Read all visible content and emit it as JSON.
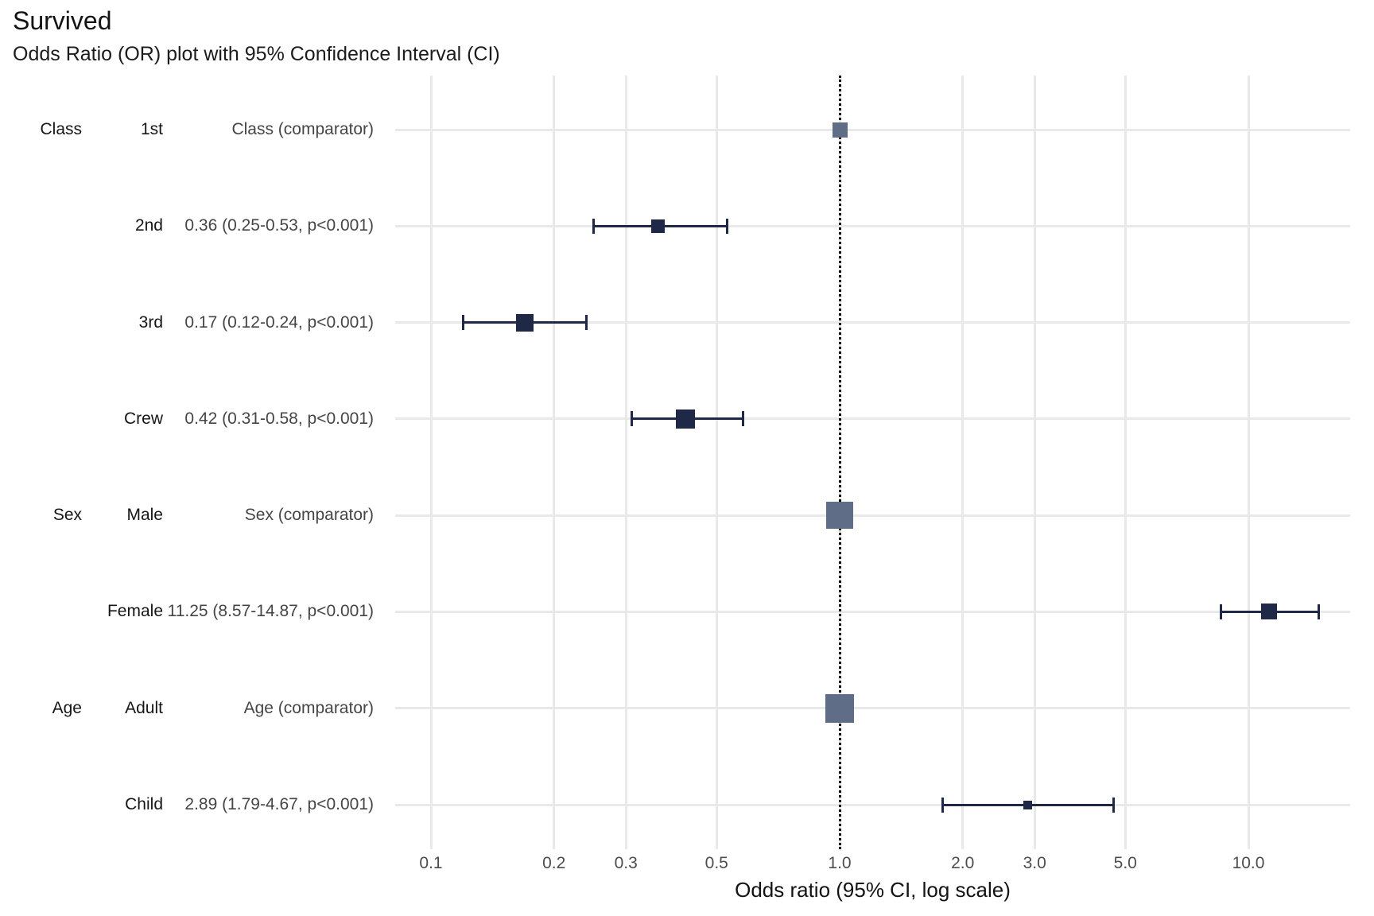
{
  "title": "Survived",
  "subtitle": "Odds Ratio (OR) plot with 95% Confidence Interval (CI)",
  "chart_data": {
    "type": "forest",
    "title": "Survived",
    "subtitle": "Odds Ratio (OR) plot with 95% Confidence Interval (CI)",
    "x_axis": {
      "label": "Odds ratio (95% CI, log scale)",
      "scale": "log10",
      "range": [
        0.082,
        17.7
      ],
      "ticks": [
        0.1,
        0.2,
        0.3,
        0.5,
        1.0,
        2.0,
        3.0,
        5.0,
        10.0
      ],
      "tick_labels": [
        "0.1",
        "0.2",
        "0.3",
        "0.5",
        "1.0",
        "2.0",
        "3.0",
        "5.0",
        "10.0"
      ],
      "reference_line": 1.0,
      "grid": true
    },
    "rows": [
      {
        "group": "Class",
        "level": "1st",
        "estimate_label": "Class (comparator)",
        "or": 1.0,
        "ci_low": null,
        "ci_high": null,
        "comparator": true,
        "marker_size": 19
      },
      {
        "group": "",
        "level": "2nd",
        "estimate_label": "0.36 (0.25-0.53, p<0.001)",
        "or": 0.36,
        "ci_low": 0.25,
        "ci_high": 0.53,
        "comparator": false,
        "marker_size": 17
      },
      {
        "group": "",
        "level": "3rd",
        "estimate_label": "0.17 (0.12-0.24, p<0.001)",
        "or": 0.17,
        "ci_low": 0.12,
        "ci_high": 0.24,
        "comparator": false,
        "marker_size": 22
      },
      {
        "group": "",
        "level": "Crew",
        "estimate_label": "0.42 (0.31-0.58, p<0.001)",
        "or": 0.42,
        "ci_low": 0.31,
        "ci_high": 0.58,
        "comparator": false,
        "marker_size": 24
      },
      {
        "group": "Sex",
        "level": "Male",
        "estimate_label": "Sex (comparator)",
        "or": 1.0,
        "ci_low": null,
        "ci_high": null,
        "comparator": true,
        "marker_size": 34
      },
      {
        "group": "",
        "level": "Female",
        "estimate_label": "11.25 (8.57-14.87, p<0.001)",
        "or": 11.25,
        "ci_low": 8.57,
        "ci_high": 14.87,
        "comparator": false,
        "marker_size": 20
      },
      {
        "group": "Age",
        "level": "Adult",
        "estimate_label": "Age (comparator)",
        "or": 1.0,
        "ci_low": null,
        "ci_high": null,
        "comparator": true,
        "marker_size": 36
      },
      {
        "group": "",
        "level": "Child",
        "estimate_label": "2.89 (1.79-4.67, p<0.001)",
        "or": 2.89,
        "ci_low": 1.79,
        "ci_high": 4.67,
        "comparator": false,
        "marker_size": 11
      }
    ],
    "colors": {
      "estimate_marker": "#1f2847",
      "comparator_marker": "#5f6d87",
      "ci_line": "#1f2847",
      "gridline": "#e9e9e9",
      "reference_line": "#0a0a0a",
      "label_text": "#161616",
      "estimate_text": "#454545",
      "tick_text": "#4d4d4d"
    },
    "legend": null
  }
}
